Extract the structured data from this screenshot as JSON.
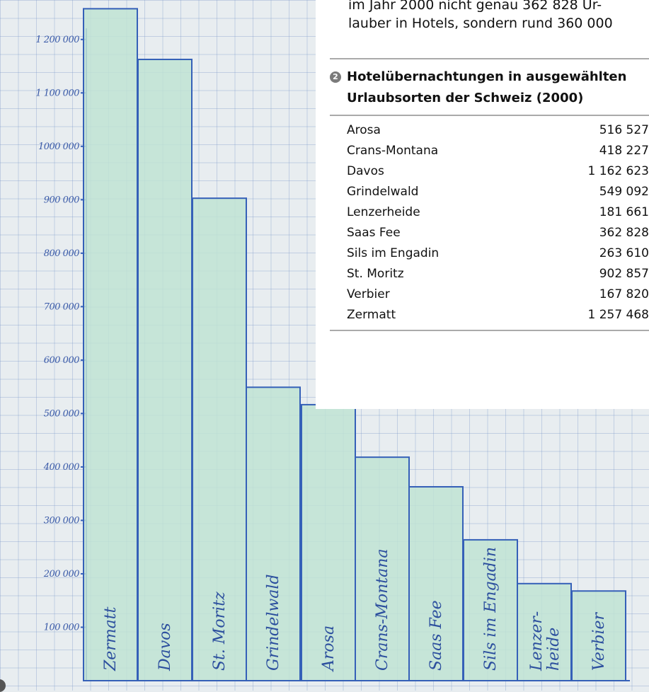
{
  "chart_data": {
    "type": "bar",
    "categories": [
      "Zermatt",
      "Davos",
      "St. Moritz",
      "Grindelwald",
      "Arosa",
      "Crans-Montana",
      "Saas Fee",
      "Sils im Engadin",
      "Lenzer-\nheide",
      "Verbier"
    ],
    "values": [
      1257468,
      1162623,
      902857,
      549092,
      516527,
      418227,
      362828,
      263610,
      181661,
      167820
    ],
    "ylim": [
      0,
      1250000
    ],
    "yticks": [
      100000,
      200000,
      300000,
      400000,
      500000,
      600000,
      700000,
      800000,
      900000,
      1000000,
      1100000,
      1200000
    ],
    "ytick_labels": [
      "100 000",
      "200 000",
      "300 000",
      "400 000",
      "500 000",
      "600 000",
      "700 000",
      "800 000",
      "900 000",
      "1000 000",
      "1 100 000",
      "1 200 000"
    ],
    "colors": {
      "bar_fill": "#bfe3d4",
      "bar_stroke": "#3560b8",
      "axis": "#3560b8"
    }
  },
  "intro_text": {
    "line1": "im Jahr 2000 nicht genau 362 828 Ur-",
    "line2": "lauber in Hotels, sondern rund 360 000"
  },
  "table": {
    "badge": "2",
    "title_line1": "Hotelübernachtungen in ausgewählten",
    "title_line2": "Urlaubsorten der Schweiz (2000)",
    "rows": [
      {
        "name": "Arosa",
        "value": "516 527"
      },
      {
        "name": "Crans-Montana",
        "value": "418 227"
      },
      {
        "name": "Davos",
        "value": "1 162 623"
      },
      {
        "name": "Grindelwald",
        "value": "549 092"
      },
      {
        "name": "Lenzerheide",
        "value": "181 661"
      },
      {
        "name": "Saas Fee",
        "value": "362 828"
      },
      {
        "name": "Sils im Engadin",
        "value": "263 610"
      },
      {
        "name": "St. Moritz",
        "value": "902 857"
      },
      {
        "name": "Verbier",
        "value": "167 820"
      },
      {
        "name": "Zermatt",
        "value": "1 257 468"
      }
    ]
  }
}
